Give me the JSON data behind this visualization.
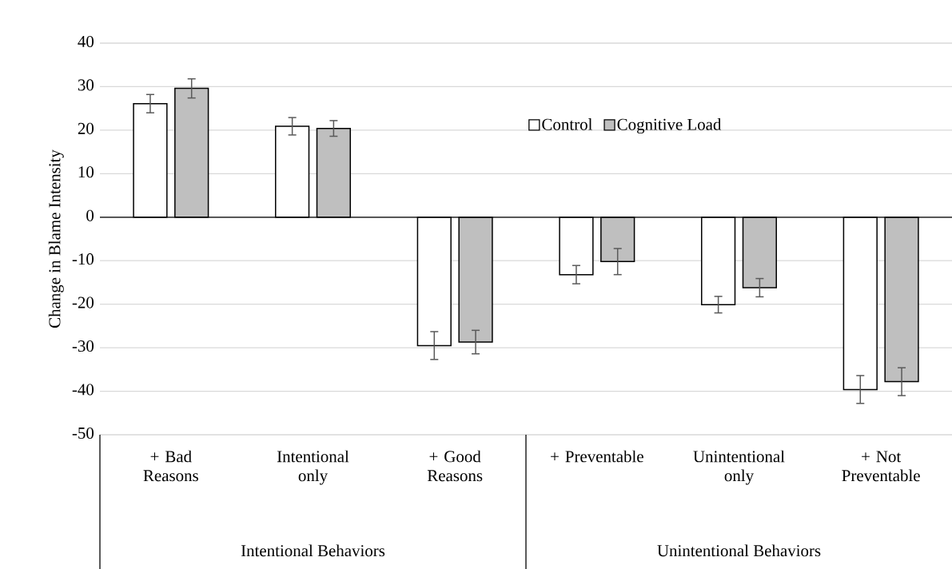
{
  "chart_data": {
    "type": "bar",
    "ylabel": "Change in Blame Intensity",
    "categories": [
      "+ Bad Reasons",
      "Intentional only",
      "+ Good Reasons",
      "+ Preventable",
      "Unintentional only",
      "+ Not Preventable"
    ],
    "series": [
      {
        "name": "Control",
        "color": "#ffffff",
        "values": [
          26.1,
          20.9,
          -29.5,
          -13.2,
          -20.1,
          -39.6
        ],
        "errors": [
          2.1,
          2.0,
          3.2,
          2.1,
          1.9,
          3.2
        ]
      },
      {
        "name": "Cognitive Load",
        "color": "#bfbfbf",
        "values": [
          29.6,
          20.4,
          -28.7,
          -10.2,
          -16.2,
          -37.8
        ],
        "errors": [
          2.2,
          1.8,
          2.7,
          3.0,
          2.1,
          3.2
        ]
      }
    ],
    "ylim": [
      -50,
      40
    ],
    "yticks": [
      -50,
      -40,
      -30,
      -20,
      -10,
      0,
      10,
      20,
      30,
      40
    ],
    "grid": "y",
    "legend": "top right",
    "annotations": [
      "Intentional Behaviors",
      "Unintentional Behaviors"
    ]
  }
}
